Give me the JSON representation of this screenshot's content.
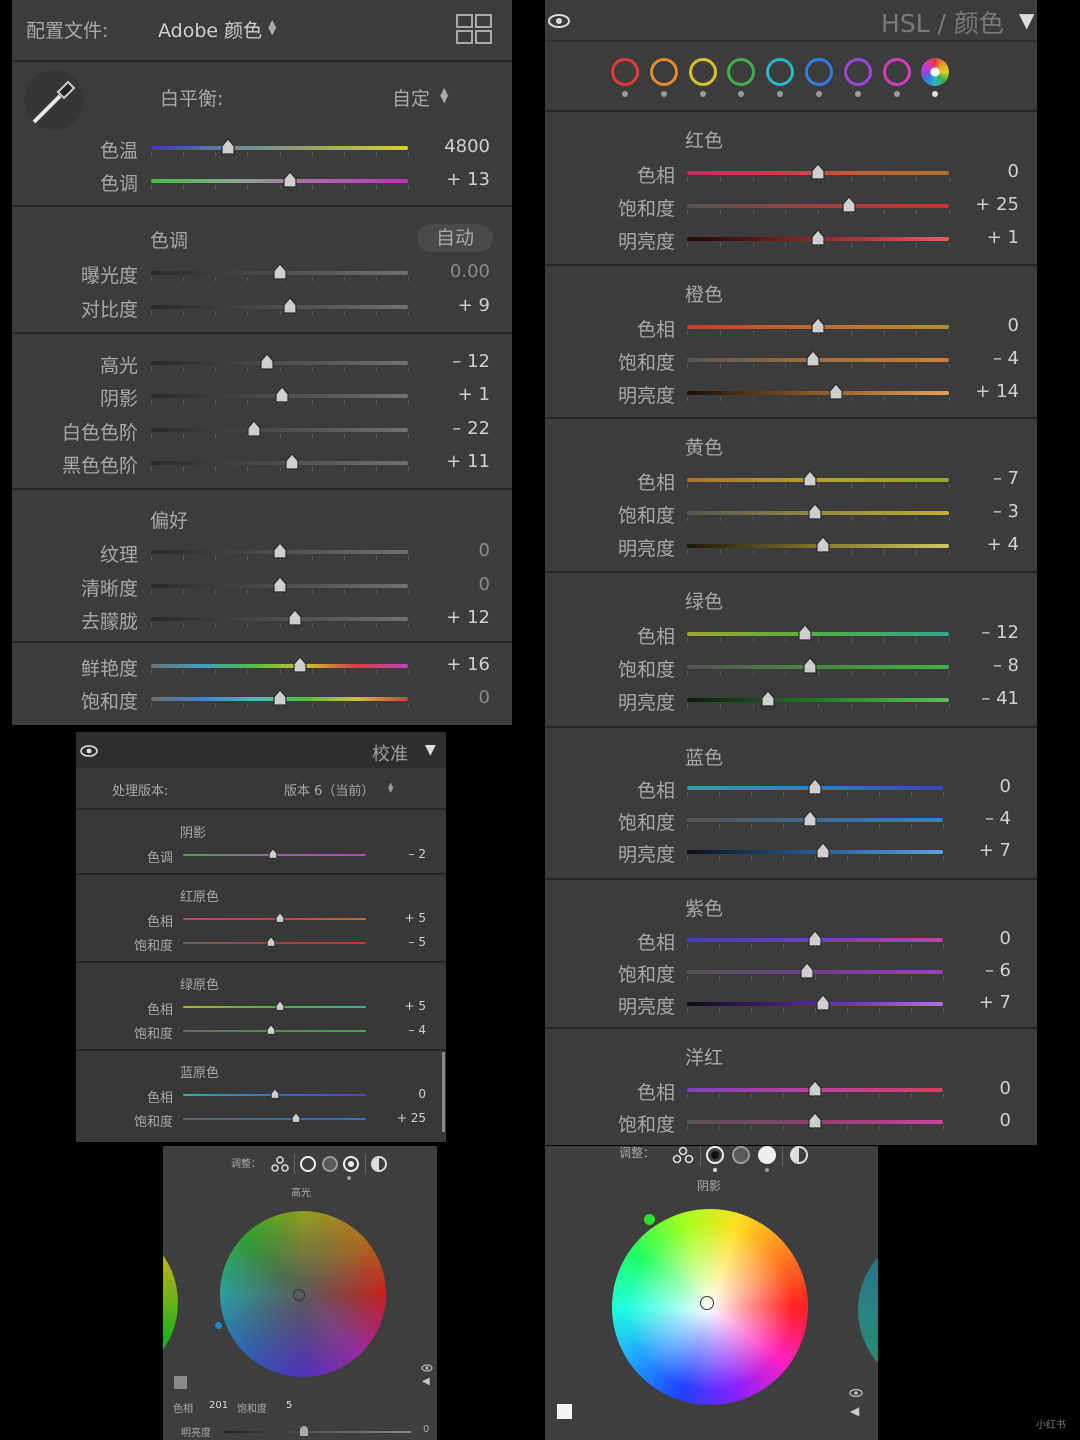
{
  "basic": {
    "profile_label": "配置文件:",
    "profile_value": "Adobe 颜色",
    "wb_label": "白平衡:",
    "wb_value": "自定",
    "temp": {
      "label": "色温",
      "value": "4800",
      "pos": 0.3
    },
    "tint": {
      "label": "色调",
      "value": "+ 13",
      "pos": 0.54
    },
    "tone_title": "色调",
    "auto_label": "自动",
    "exposure": {
      "label": "曝光度",
      "value": "0.00",
      "pos": 0.5
    },
    "contrast": {
      "label": "对比度",
      "value": "+ 9",
      "pos": 0.54
    },
    "highlights": {
      "label": "高光",
      "value": "– 12",
      "pos": 0.45
    },
    "shadows": {
      "label": "阴影",
      "value": "+ 1",
      "pos": 0.51
    },
    "whites": {
      "label": "白色色阶",
      "value": "– 22",
      "pos": 0.4
    },
    "blacks": {
      "label": "黑色色阶",
      "value": "+ 11",
      "pos": 0.55
    },
    "pref_title": "偏好",
    "texture": {
      "label": "纹理",
      "value": "0",
      "pos": 0.5
    },
    "clarity": {
      "label": "清晰度",
      "value": "0",
      "pos": 0.5
    },
    "dehaze": {
      "label": "去朦胧",
      "value": "+ 12",
      "pos": 0.56
    },
    "vibrance": {
      "label": "鲜艳度",
      "value": "+ 16",
      "pos": 0.58
    },
    "saturation": {
      "label": "饱和度",
      "value": "0",
      "pos": 0.5
    }
  },
  "hsl": {
    "header_title": "HSL / 颜色",
    "swatch_colors": [
      "#e03a3a",
      "#e38a2e",
      "#d8c22a",
      "#3fb04a",
      "#28b7c8",
      "#2f7fe0",
      "#9a45d8",
      "#d23cc0"
    ],
    "groups": [
      {
        "name": "红色",
        "rows": [
          {
            "label": "色相",
            "value": "0",
            "pos": 0.5,
            "grad": "linear-gradient(90deg,#c03060,#c0404a,#c06030,#b07028)"
          },
          {
            "label": "饱和度",
            "value": "+ 25",
            "pos": 0.62,
            "grad": "linear-gradient(90deg,#555,#a04040,#d03030)"
          },
          {
            "label": "明亮度",
            "value": "+ 1",
            "pos": 0.5,
            "grad": "linear-gradient(90deg,#1a0a0a,#902828,#e06060)"
          }
        ]
      },
      {
        "name": "橙色",
        "rows": [
          {
            "label": "色相",
            "value": "0",
            "pos": 0.5,
            "grad": "linear-gradient(90deg,#c04030,#c06a30,#b09030)"
          },
          {
            "label": "饱和度",
            "value": "– 4",
            "pos": 0.48,
            "grad": "linear-gradient(90deg,#555,#a07040,#d08030)"
          },
          {
            "label": "明亮度",
            "value": "+ 14",
            "pos": 0.57,
            "grad": "linear-gradient(90deg,#1a100a,#905a28,#e0a060)"
          }
        ]
      },
      {
        "name": "黄色",
        "rows": [
          {
            "label": "色相",
            "value": "– 7",
            "pos": 0.47,
            "grad": "linear-gradient(90deg,#b07030,#b0a030,#90a830)"
          },
          {
            "label": "饱和度",
            "value": "– 3",
            "pos": 0.49,
            "grad": "linear-gradient(90deg,#555,#908a40,#c0b030)"
          },
          {
            "label": "明亮度",
            "value": "+ 4",
            "pos": 0.52,
            "grad": "linear-gradient(90deg,#1a180a,#807828,#d0c860)"
          }
        ]
      },
      {
        "name": "绿色",
        "rows": [
          {
            "label": "色相",
            "value": "– 12",
            "pos": 0.45,
            "grad": "linear-gradient(90deg,#a0a830,#50b040,#30a890)"
          },
          {
            "label": "饱和度",
            "value": "– 8",
            "pos": 0.47,
            "grad": "linear-gradient(90deg,#555,#4a8a40,#40b040)"
          },
          {
            "label": "明亮度",
            "value": "– 41",
            "pos": 0.31,
            "grad": "linear-gradient(90deg,#0a1a0a,#287828,#60c060)"
          }
        ]
      },
      {
        "name": "蓝色",
        "rows": [
          {
            "label": "色相",
            "value": "0",
            "pos": 0.5,
            "grad": "linear-gradient(90deg,#30a0a0,#3080c0,#4040c0)"
          },
          {
            "label": "饱和度",
            "value": "– 4",
            "pos": 0.48,
            "grad": "linear-gradient(90deg,#555,#406a90,#3080d0)"
          },
          {
            "label": "明亮度",
            "value": "+ 7",
            "pos": 0.53,
            "grad": "linear-gradient(90deg,#0a101a,#285a90,#60a0e0)"
          }
        ]
      },
      {
        "name": "紫色",
        "rows": [
          {
            "label": "色相",
            "value": "0",
            "pos": 0.5,
            "grad": "linear-gradient(90deg,#4040c0,#7040c0,#c040a0)"
          },
          {
            "label": "饱和度",
            "value": "– 6",
            "pos": 0.47,
            "grad": "linear-gradient(90deg,#555,#70408a,#9a40c0)"
          },
          {
            "label": "明亮度",
            "value": "+ 7",
            "pos": 0.53,
            "grad": "linear-gradient(90deg,#100a1a,#582890,#b070e0)"
          }
        ]
      },
      {
        "name": "洋红",
        "rows": [
          {
            "label": "色相",
            "value": "0",
            "pos": 0.5,
            "grad": "linear-gradient(90deg,#8040c0,#c040a0,#d04060)"
          },
          {
            "label": "饱和度",
            "value": "0",
            "pos": 0.5,
            "grad": "linear-gradient(90deg,#555,#904070,#d040a0)"
          }
        ]
      }
    ]
  },
  "calib": {
    "title": "校准",
    "process_label": "处理版本:",
    "process_value": "版本 6（当前）",
    "shadow_title": "阴影",
    "shadow_tint": {
      "label": "色调",
      "value": "– 2",
      "pos": 0.49
    },
    "red_title": "红原色",
    "red_hue": {
      "label": "色相",
      "value": "+ 5",
      "pos": 0.53
    },
    "red_sat": {
      "label": "饱和度",
      "value": "– 5",
      "pos": 0.48
    },
    "green_title": "绿原色",
    "green_hue": {
      "label": "色相",
      "value": "+ 5",
      "pos": 0.53
    },
    "green_sat": {
      "label": "饱和度",
      "value": "– 4",
      "pos": 0.48
    },
    "blue_title": "蓝原色",
    "blue_hue": {
      "label": "色相",
      "value": "0",
      "pos": 0.5
    },
    "blue_sat": {
      "label": "饱和度",
      "value": "+ 25",
      "pos": 0.62
    }
  },
  "grading1": {
    "adjust_label": "调整：",
    "region_label": "高光",
    "hue_label": "色相",
    "hue_value": "201",
    "sat_label": "饱和度",
    "sat_value": "5",
    "lum_label": "明亮度",
    "lum_value": "0"
  },
  "grading2": {
    "adjust_label": "调整：",
    "region_label": "阴影"
  },
  "watermark": "小红书"
}
